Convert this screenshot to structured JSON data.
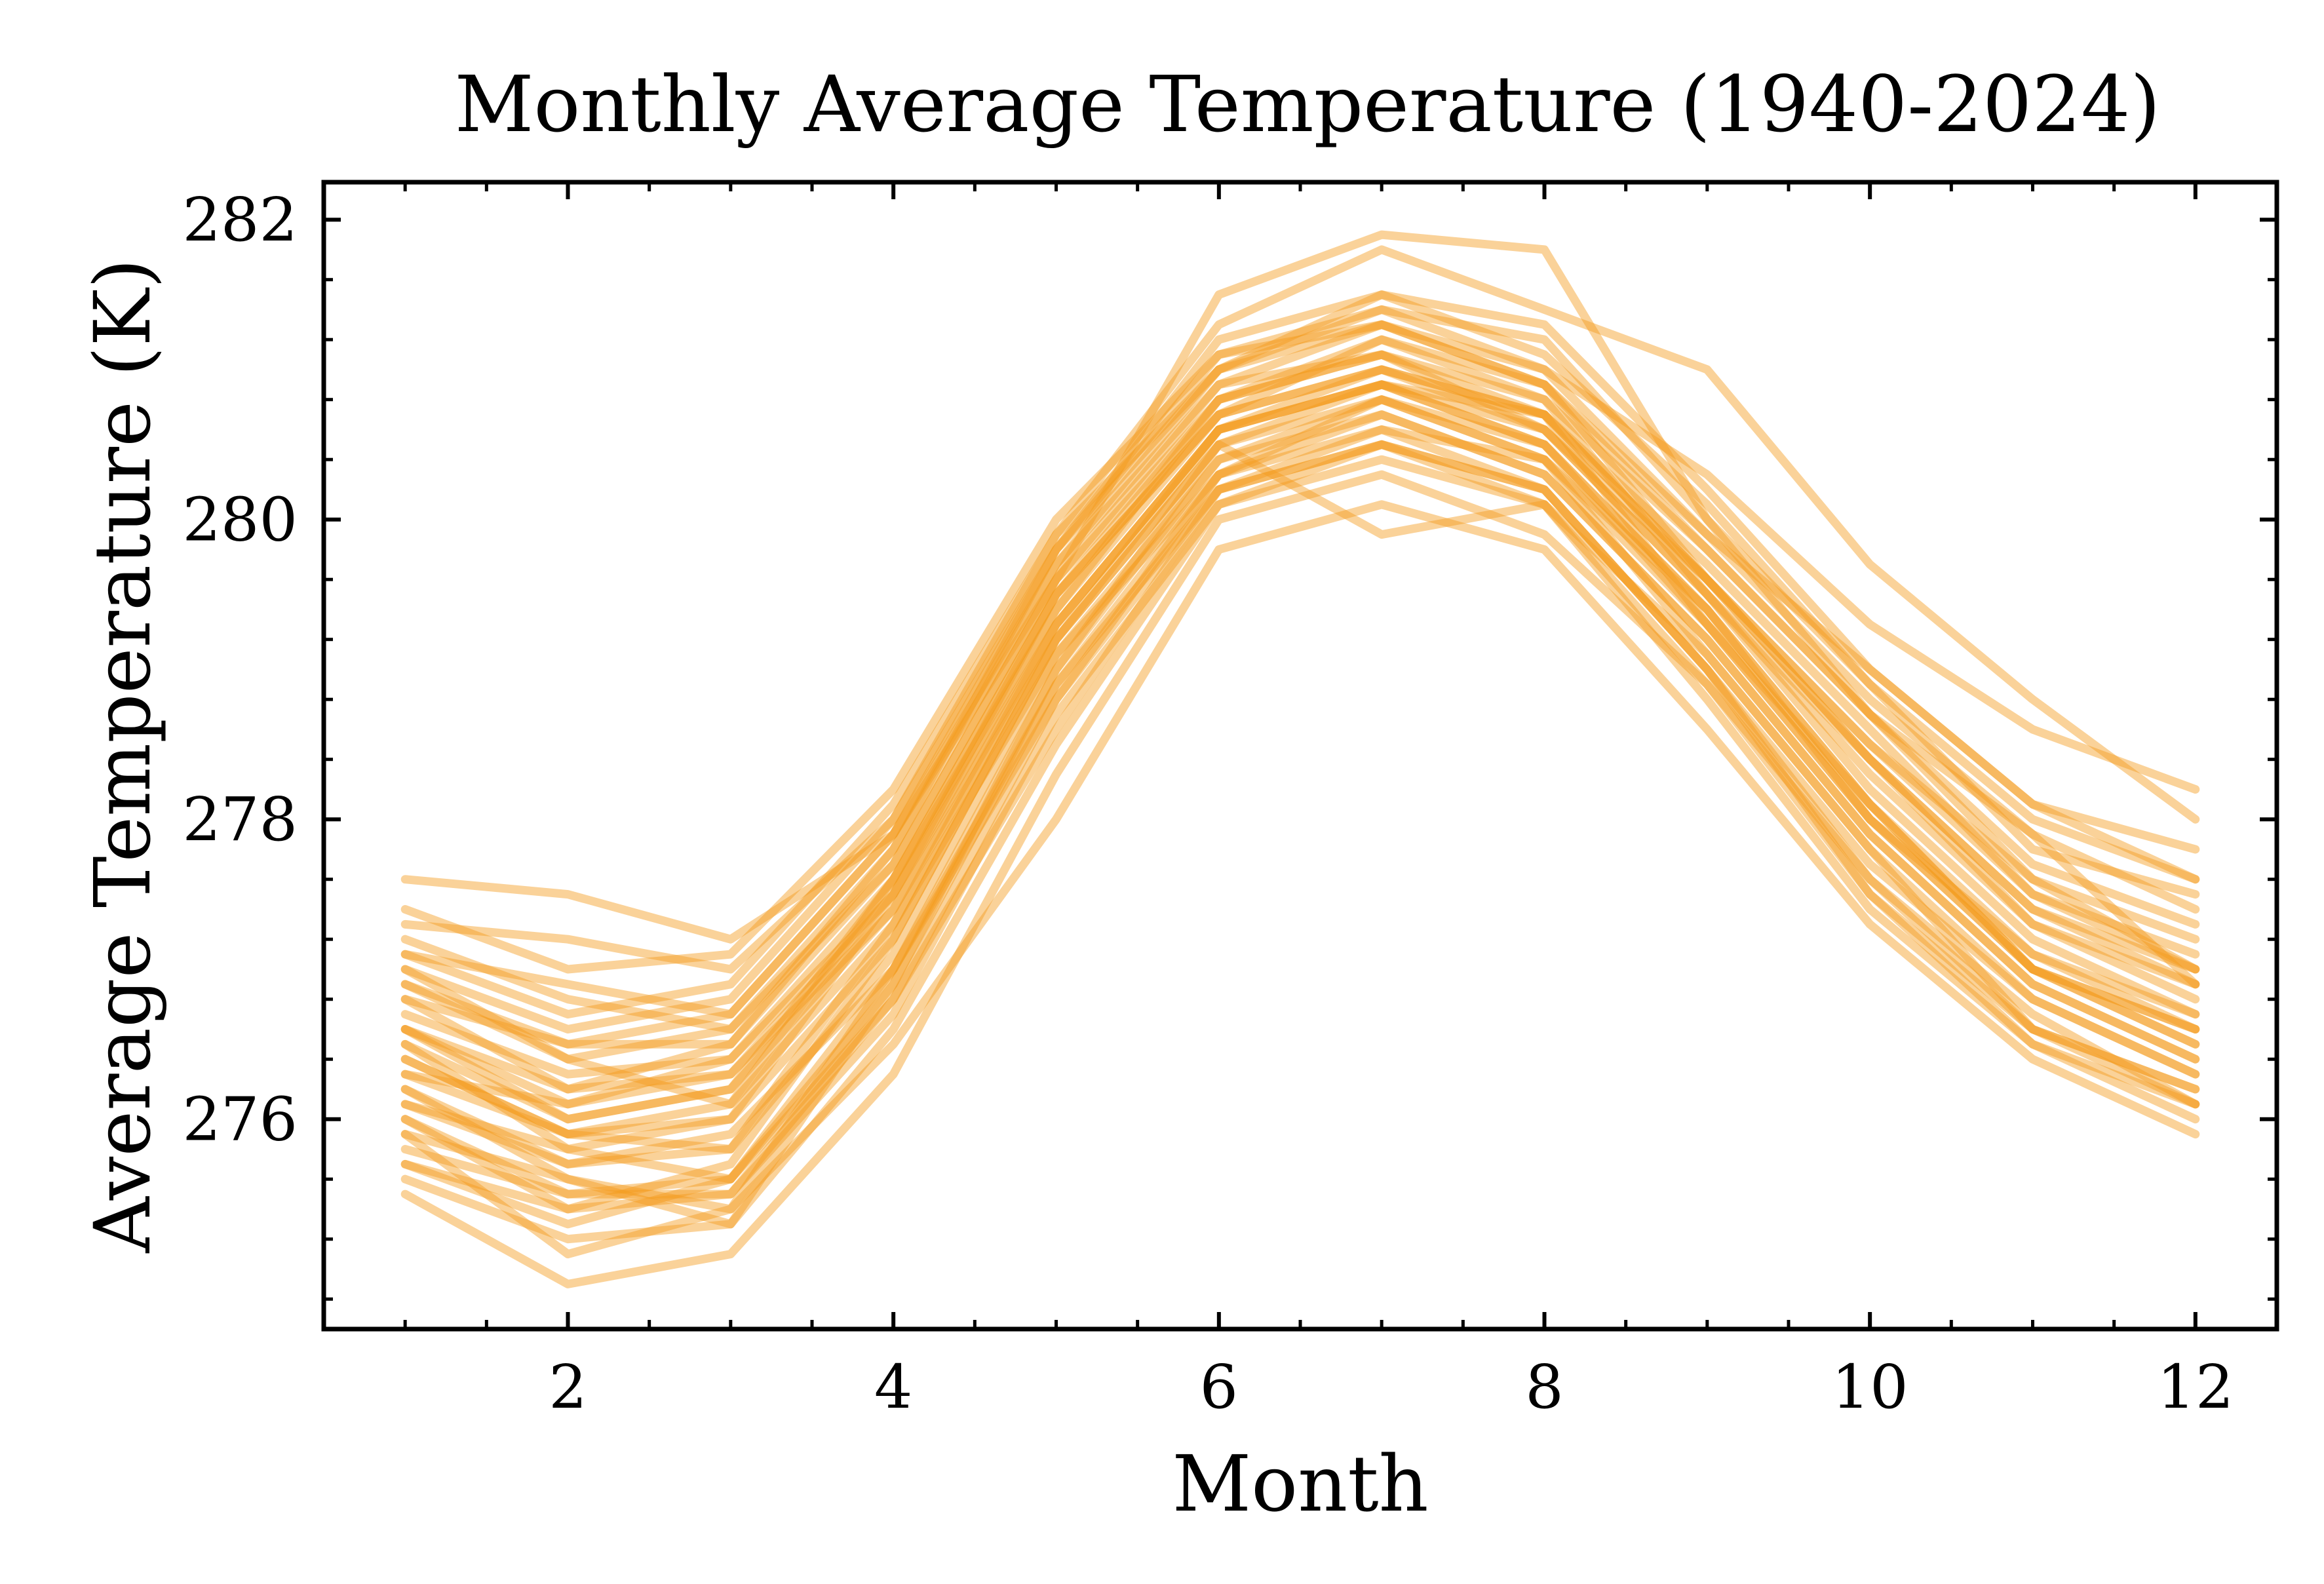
{
  "chart_data": {
    "type": "line",
    "title": "Monthly Average Temperature (1940-2024)",
    "xlabel": "Month",
    "ylabel": "Average Temperature (K)",
    "xlim": [
      0.5,
      12.5
    ],
    "ylim": [
      274.6,
      282.25
    ],
    "xticks": [
      2,
      4,
      6,
      8,
      10,
      12
    ],
    "xtick_labels": [
      "2",
      "4",
      "6",
      "8",
      "10",
      "12"
    ],
    "yticks": [
      276,
      278,
      280,
      282
    ],
    "ytick_labels": [
      "276",
      "278",
      "280",
      "282"
    ],
    "grid": false,
    "legend": "none",
    "line_color": "#f59b1c",
    "line_alpha": 0.45,
    "x": [
      1,
      2,
      3,
      4,
      5,
      6,
      7,
      8,
      9,
      10,
      11,
      12
    ],
    "series": [
      {
        "values": [
          277.6,
          277.5,
          277.2,
          277.9,
          279.6,
          281.5,
          281.9,
          281.8,
          280.0,
          278.7,
          277.9,
          276.9
        ]
      },
      {
        "values": [
          277.0,
          276.4,
          276.1,
          277.6,
          279.5,
          280.7,
          281.2,
          280.9,
          279.6,
          278.5,
          277.6,
          277.0
        ]
      },
      {
        "values": [
          276.4,
          275.9,
          275.8,
          277.3,
          279.3,
          280.6,
          280.9,
          280.7,
          279.3,
          278.1,
          277.1,
          276.7
        ]
      },
      {
        "values": [
          276.8,
          276.2,
          276.5,
          277.7,
          279.6,
          280.9,
          281.1,
          280.6,
          279.5,
          278.3,
          277.3,
          276.9
        ]
      },
      {
        "values": [
          275.5,
          274.9,
          275.1,
          276.3,
          278.3,
          280.0,
          280.3,
          279.9,
          278.9,
          277.5,
          276.6,
          276.1
        ]
      },
      {
        "values": [
          277.1,
          276.7,
          276.9,
          278.1,
          279.9,
          281.0,
          281.4,
          281.0,
          279.9,
          279.0,
          278.1,
          277.6
        ]
      },
      {
        "values": [
          276.0,
          275.5,
          275.6,
          276.9,
          278.9,
          280.3,
          280.6,
          280.4,
          279.1,
          277.8,
          276.8,
          276.3
        ]
      },
      {
        "values": [
          276.6,
          276.0,
          276.2,
          277.4,
          279.2,
          280.5,
          280.8,
          280.5,
          279.4,
          278.1,
          277.0,
          276.6
        ]
      },
      {
        "values": [
          275.9,
          275.1,
          275.4,
          276.5,
          278.0,
          279.8,
          280.1,
          279.8,
          278.6,
          277.3,
          276.4,
          275.9
        ]
      },
      {
        "values": [
          277.4,
          277.0,
          277.1,
          278.2,
          280.0,
          281.1,
          281.3,
          281.0,
          280.3,
          279.3,
          278.6,
          278.2
        ]
      },
      {
        "values": [
          276.2,
          275.6,
          275.4,
          277.0,
          279.0,
          280.4,
          280.7,
          280.3,
          279.2,
          277.9,
          276.9,
          276.4
        ]
      },
      {
        "values": [
          276.9,
          276.5,
          276.7,
          277.9,
          279.7,
          280.9,
          281.3,
          280.9,
          279.8,
          278.7,
          277.7,
          277.3
        ]
      },
      {
        "values": [
          275.7,
          275.3,
          275.6,
          276.8,
          278.6,
          280.2,
          280.5,
          280.2,
          279.0,
          277.6,
          276.6,
          276.2
        ]
      },
      {
        "values": [
          276.5,
          275.8,
          276.0,
          277.5,
          279.3,
          280.6,
          281.0,
          280.6,
          279.6,
          278.4,
          277.3,
          276.8
        ]
      },
      {
        "values": [
          277.2,
          276.8,
          276.6,
          277.8,
          279.8,
          281.2,
          281.5,
          281.1,
          280.1,
          278.9,
          277.8,
          277.5
        ]
      },
      {
        "values": [
          276.1,
          275.7,
          275.8,
          277.1,
          279.1,
          280.4,
          280.8,
          280.4,
          279.4,
          278.0,
          277.0,
          276.5
        ]
      },
      {
        "values": [
          276.7,
          276.3,
          276.4,
          277.6,
          279.4,
          280.7,
          281.0,
          280.7,
          279.7,
          278.6,
          277.5,
          277.1
        ]
      },
      {
        "values": [
          275.6,
          275.2,
          275.3,
          276.6,
          278.5,
          280.1,
          280.4,
          280.1,
          278.8,
          277.4,
          276.5,
          276.0
        ]
      },
      {
        "values": [
          276.3,
          276.1,
          276.3,
          277.5,
          279.5,
          280.8,
          281.1,
          280.8,
          279.5,
          278.2,
          277.2,
          276.7
        ]
      },
      {
        "values": [
          277.3,
          277.2,
          277.0,
          278.0,
          279.9,
          281.3,
          281.8,
          281.4,
          281.0,
          279.7,
          278.8,
          278.0
        ]
      },
      {
        "values": [
          276.0,
          275.4,
          275.7,
          277.2,
          279.2,
          280.5,
          280.9,
          280.5,
          279.3,
          278.0,
          277.1,
          276.6
        ]
      },
      {
        "values": [
          276.4,
          275.9,
          276.1,
          277.3,
          279.1,
          280.3,
          280.7,
          280.3,
          279.2,
          277.9,
          276.9,
          276.4
        ]
      },
      {
        "values": [
          277.0,
          276.6,
          276.8,
          278.0,
          279.8,
          281.1,
          281.4,
          281.2,
          280.0,
          278.9,
          278.0,
          277.6
        ]
      },
      {
        "values": [
          275.8,
          275.5,
          275.5,
          276.7,
          278.7,
          280.1,
          280.5,
          280.1,
          278.9,
          277.6,
          276.7,
          276.1
        ]
      },
      {
        "values": [
          276.6,
          276.2,
          276.3,
          277.4,
          279.3,
          280.6,
          280.9,
          280.6,
          279.5,
          278.4,
          277.4,
          276.9
        ]
      },
      {
        "values": [
          276.2,
          275.7,
          275.9,
          277.0,
          278.9,
          280.2,
          280.6,
          280.2,
          279.0,
          277.7,
          276.8,
          276.3
        ]
      },
      {
        "values": [
          276.9,
          276.4,
          276.6,
          277.7,
          279.6,
          280.8,
          281.2,
          280.8,
          279.8,
          278.7,
          277.6,
          277.2
        ]
      },
      {
        "values": [
          275.9,
          275.6,
          275.3,
          276.9,
          279.0,
          280.5,
          279.9,
          280.1,
          279.1,
          277.8,
          276.6,
          276.2
        ]
      },
      {
        "values": [
          276.5,
          276.0,
          276.2,
          277.6,
          279.5,
          280.7,
          281.0,
          280.7,
          279.6,
          278.5,
          277.5,
          277.0
        ]
      },
      {
        "values": [
          276.8,
          276.5,
          276.5,
          277.8,
          279.7,
          281.0,
          281.3,
          280.9,
          279.9,
          278.8,
          277.9,
          277.4
        ]
      },
      {
        "values": [
          276.1,
          275.8,
          275.6,
          277.0,
          278.8,
          280.3,
          280.8,
          280.4,
          279.3,
          278.0,
          277.0,
          276.5
        ]
      },
      {
        "values": [
          277.1,
          276.9,
          276.7,
          277.9,
          279.8,
          281.0,
          281.5,
          281.3,
          280.2,
          279.0,
          278.1,
          277.8
        ]
      },
      {
        "values": [
          276.3,
          275.9,
          276.0,
          277.2,
          279.2,
          280.6,
          280.9,
          280.5,
          279.4,
          278.1,
          277.0,
          276.6
        ]
      },
      {
        "values": [
          275.7,
          275.4,
          275.5,
          276.8,
          278.8,
          280.2,
          280.5,
          280.2,
          279.0,
          277.5,
          276.5,
          276.1
        ]
      },
      {
        "values": [
          276.6,
          276.1,
          276.4,
          277.5,
          279.4,
          280.8,
          281.1,
          280.7,
          279.6,
          278.4,
          277.4,
          277.0
        ]
      }
    ]
  }
}
